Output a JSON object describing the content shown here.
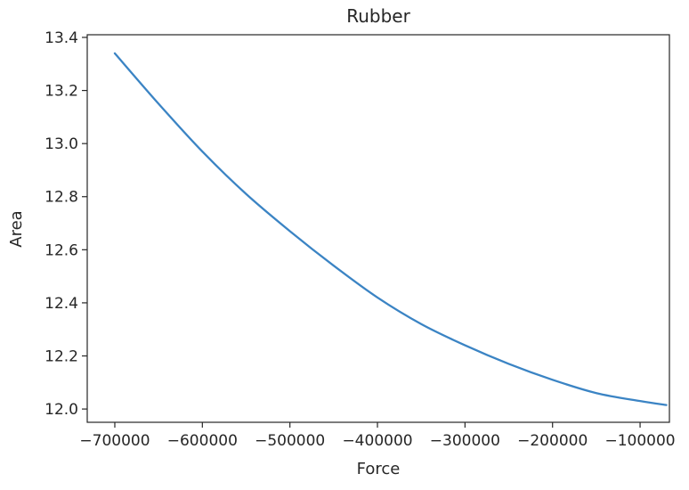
{
  "chart_data": {
    "type": "line",
    "title": "Rubber",
    "xlabel": "Force",
    "ylabel": "Area",
    "xlim": [
      -731500,
      -66500
    ],
    "ylim": [
      11.95,
      13.41
    ],
    "grid": false,
    "xticks": [
      -700000,
      -600000,
      -500000,
      -400000,
      -300000,
      -200000,
      -100000
    ],
    "xtick_labels": [
      "−700000",
      "−600000",
      "−500000",
      "−400000",
      "−300000",
      "−200000",
      "−100000"
    ],
    "yticks": [
      12.0,
      12.2,
      12.4,
      12.6,
      12.8,
      13.0,
      13.2,
      13.4
    ],
    "ytick_labels": [
      "12.0",
      "12.2",
      "12.4",
      "12.6",
      "12.8",
      "13.0",
      "13.2",
      "13.4"
    ],
    "series": [
      {
        "color": "#3b84c4",
        "x": [
          -700000,
          -650000,
          -600000,
          -550000,
          -500000,
          -450000,
          -400000,
          -350000,
          -300000,
          -250000,
          -200000,
          -150000,
          -100000,
          -70000
        ],
        "y": [
          13.34,
          13.15,
          12.97,
          12.81,
          12.67,
          12.54,
          12.42,
          12.32,
          12.24,
          12.17,
          12.11,
          12.06,
          12.03,
          12.015
        ]
      }
    ]
  }
}
